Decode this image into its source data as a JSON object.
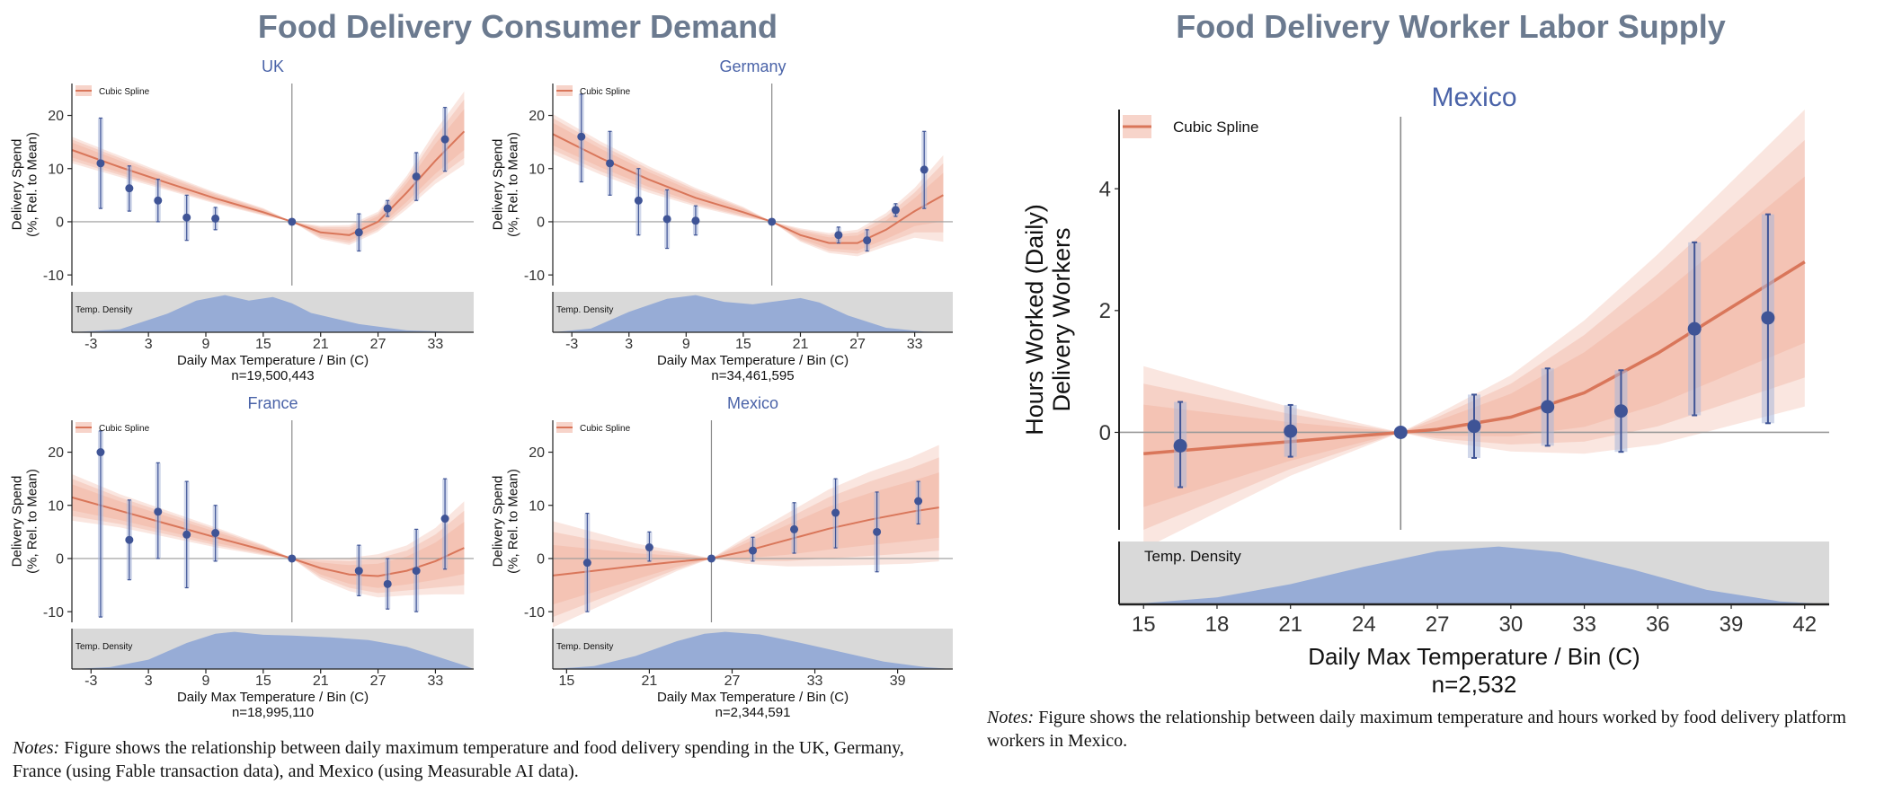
{
  "left_panel": {
    "title": "Food Delivery Consumer Demand",
    "notes_label": "Notes:",
    "notes_text": "Figure shows the relationship between daily maximum temperature and food delivery spending in the UK, Germany, France (using Fable transaction data), and Mexico (using Measurable AI data)."
  },
  "right_panel": {
    "title": "Food Delivery Worker Labor Supply",
    "notes_label": "Notes:",
    "notes_text": "Figure shows the relationship between daily maximum temperature and hours worked by food delivery platform workers in Mexico."
  },
  "colors": {
    "title": "#6b7a8f",
    "subtitle": "#4a63a8",
    "spline": "#d9765a",
    "band": "#f2b8a6",
    "point": "#3f5496",
    "point_band": "#a9b6d9",
    "density_fill": "#97acd6",
    "density_bg": "#d9d9d9"
  },
  "chart_data": [
    {
      "type": "line",
      "subtitle": "UK",
      "legend": "Cubic Spline",
      "density_label": "Temp. Density",
      "xlabel": "Daily Max Temperature / Bin (C)",
      "n_label": "n=19,500,443",
      "ylabel": [
        "Delivery Spend",
        "(%, Rel. to Mean)"
      ],
      "xlim": [
        -5,
        37
      ],
      "ylim": [
        -12,
        26
      ],
      "xticks": [
        -3,
        3,
        9,
        15,
        21,
        27,
        33
      ],
      "yticks": [
        -10,
        0,
        10,
        20
      ],
      "ref_x": 18,
      "spline": {
        "x": [
          -5,
          0,
          5,
          10,
          15,
          18,
          21,
          24,
          27,
          30,
          33,
          36
        ],
        "y": [
          13.5,
          10.3,
          7.3,
          4.4,
          1.8,
          0,
          -2,
          -2.5,
          0,
          5.5,
          11.5,
          17
        ]
      },
      "band": {
        "x": [
          -5,
          0,
          5,
          10,
          15,
          18,
          21,
          24,
          27,
          30,
          33,
          36
        ],
        "lo": [
          11.5,
          8.8,
          6.2,
          3.6,
          1.3,
          0,
          -3,
          -4,
          -1.5,
          3,
          8,
          12
        ],
        "hi": [
          15.5,
          12,
          8.6,
          5.3,
          2.4,
          0,
          -1,
          -1,
          1.5,
          8,
          16,
          23
        ]
      },
      "points": [
        {
          "x": -2,
          "y": 11,
          "lo": 2.5,
          "hi": 19.5
        },
        {
          "x": 1,
          "y": 6.3,
          "lo": 2,
          "hi": 10.5
        },
        {
          "x": 4,
          "y": 4,
          "lo": 0,
          "hi": 8
        },
        {
          "x": 7,
          "y": 0.8,
          "lo": -3.5,
          "hi": 5
        },
        {
          "x": 10,
          "y": 0.6,
          "lo": -1.5,
          "hi": 2.7
        },
        {
          "x": 18,
          "y": 0,
          "lo": 0,
          "hi": 0
        },
        {
          "x": 25,
          "y": -2,
          "lo": -5.5,
          "hi": 1.5
        },
        {
          "x": 28,
          "y": 2.5,
          "lo": 1,
          "hi": 4
        },
        {
          "x": 31,
          "y": 8.5,
          "lo": 4,
          "hi": 13
        },
        {
          "x": 34,
          "y": 15.5,
          "lo": 9.5,
          "hi": 21.5
        }
      ],
      "density": {
        "x": [
          -5,
          0,
          5,
          8,
          11,
          13.5,
          16,
          18,
          20,
          25,
          30,
          35,
          37
        ],
        "y": [
          0,
          0.08,
          0.5,
          0.85,
          1.0,
          0.85,
          0.95,
          0.78,
          0.52,
          0.22,
          0.05,
          0.01,
          0
        ]
      }
    },
    {
      "type": "line",
      "subtitle": "Germany",
      "legend": "Cubic Spline",
      "density_label": "Temp. Density",
      "xlabel": "Daily Max Temperature / Bin (C)",
      "n_label": "n=34,461,595",
      "ylabel": [
        "Delivery Spend",
        "(%, Rel. to Mean)"
      ],
      "xlim": [
        -5,
        37
      ],
      "ylim": [
        -12,
        26
      ],
      "xticks": [
        -3,
        3,
        9,
        15,
        21,
        27,
        33
      ],
      "yticks": [
        -10,
        0,
        10,
        20
      ],
      "ref_x": 18,
      "spline": {
        "x": [
          -5,
          0,
          5,
          10,
          15,
          18,
          21,
          24,
          27,
          30,
          33,
          36
        ],
        "y": [
          16.5,
          12,
          8,
          4.5,
          1.8,
          0,
          -2.5,
          -4,
          -4,
          -1.5,
          2,
          5
        ]
      },
      "band": {
        "x": [
          -5,
          0,
          5,
          10,
          15,
          18,
          21,
          24,
          27,
          30,
          33,
          36
        ],
        "lo": [
          13.5,
          9.5,
          6,
          3.2,
          1,
          0,
          -3.5,
          -5.5,
          -6,
          -4,
          -2,
          -2
        ]
      },
      "band_hi": [
        19.5,
        14.5,
        10,
        6,
        2.6,
        0,
        -1.5,
        -2.5,
        -2,
        1,
        5.5,
        11
      ],
      "points": [
        {
          "x": -2,
          "y": 16,
          "lo": 7.5,
          "hi": 24
        },
        {
          "x": 1,
          "y": 11,
          "lo": 5,
          "hi": 17
        },
        {
          "x": 4,
          "y": 4,
          "lo": -2.5,
          "hi": 10
        },
        {
          "x": 7,
          "y": 0.5,
          "lo": -5,
          "hi": 6
        },
        {
          "x": 10,
          "y": 0.2,
          "lo": -2.5,
          "hi": 3
        },
        {
          "x": 18,
          "y": 0,
          "lo": 0,
          "hi": 0
        },
        {
          "x": 25,
          "y": -2.5,
          "lo": -4,
          "hi": -1
        },
        {
          "x": 28,
          "y": -3.5,
          "lo": -5.5,
          "hi": -1.5
        },
        {
          "x": 31,
          "y": 2.2,
          "lo": 1,
          "hi": 3.4
        },
        {
          "x": 34,
          "y": 9.8,
          "lo": 2.5,
          "hi": 17
        }
      ],
      "density": {
        "x": [
          -5,
          -1,
          3,
          7,
          10,
          13,
          16,
          19,
          21,
          23,
          26,
          30,
          34,
          37
        ],
        "y": [
          0,
          0.1,
          0.55,
          0.9,
          1.0,
          0.82,
          0.75,
          0.85,
          0.92,
          0.8,
          0.45,
          0.12,
          0.02,
          0
        ]
      }
    },
    {
      "type": "line",
      "subtitle": "France",
      "legend": "Cubic Spline",
      "density_label": "Temp. Density",
      "xlabel": "Daily Max Temperature / Bin (C)",
      "n_label": "n=18,995,110",
      "ylabel": [
        "Delivery Spend",
        "(%, Rel. to Mean)"
      ],
      "xlim": [
        -5,
        37
      ],
      "ylim": [
        -12,
        26
      ],
      "xticks": [
        -3,
        3,
        9,
        15,
        21,
        27,
        33
      ],
      "yticks": [
        -10,
        0,
        10,
        20
      ],
      "ref_x": 18,
      "spline": {
        "x": [
          -5,
          0,
          5,
          10,
          15,
          18,
          21,
          24,
          27,
          30,
          33,
          36
        ],
        "y": [
          11.5,
          9,
          6.5,
          4,
          1.6,
          0,
          -1.8,
          -3,
          -3.3,
          -2.3,
          -0.5,
          2
        ]
      },
      "band": {
        "x": [
          -5,
          0,
          5,
          10,
          15,
          18,
          21,
          24,
          27,
          30,
          33,
          36
        ],
        "lo": [
          8,
          6.5,
          4.5,
          2.5,
          0.8,
          0,
          -3.5,
          -5.5,
          -6.5,
          -6,
          -5.5,
          -5
        ]
      },
      "band_hi": [
        15,
        11.5,
        8.5,
        5.5,
        2.4,
        0,
        -0.3,
        -0.5,
        0,
        1.5,
        4.5,
        9
      ],
      "points": [
        {
          "x": -2,
          "y": 20,
          "lo": -11,
          "hi": 24
        },
        {
          "x": 1,
          "y": 3.5,
          "lo": -4,
          "hi": 11
        },
        {
          "x": 4,
          "y": 8.8,
          "lo": 0,
          "hi": 18
        },
        {
          "x": 7,
          "y": 4.5,
          "lo": -5.5,
          "hi": 14.5
        },
        {
          "x": 10,
          "y": 4.8,
          "lo": -0.5,
          "hi": 10
        },
        {
          "x": 18,
          "y": 0,
          "lo": 0,
          "hi": 0
        },
        {
          "x": 25,
          "y": -2.3,
          "lo": -7,
          "hi": 2.5
        },
        {
          "x": 28,
          "y": -4.8,
          "lo": -9.5,
          "hi": 0
        },
        {
          "x": 31,
          "y": -2.3,
          "lo": -10,
          "hi": 5.5
        },
        {
          "x": 34,
          "y": 7.5,
          "lo": -2,
          "hi": 15
        }
      ],
      "density": {
        "x": [
          -5,
          -1,
          3,
          7,
          10,
          12,
          15,
          18,
          22,
          26,
          30,
          33,
          36,
          37
        ],
        "y": [
          0,
          0.05,
          0.25,
          0.7,
          0.95,
          1.0,
          0.92,
          0.9,
          0.85,
          0.78,
          0.6,
          0.35,
          0.1,
          0
        ]
      }
    },
    {
      "type": "line",
      "subtitle": "Mexico",
      "legend": "Cubic Spline",
      "density_label": "Temp. Density",
      "xlabel": "Daily Max Temperature / Bin (C)",
      "n_label": "n=2,344,591",
      "ylabel": [
        "Delivery Spend",
        "(%, Rel. to Mean)"
      ],
      "xlim": [
        14,
        43
      ],
      "ylim": [
        -12,
        26
      ],
      "xticks": [
        15,
        21,
        27,
        33,
        39
      ],
      "yticks": [
        -10,
        0,
        10,
        20
      ],
      "ref_x": 25.5,
      "spline": {
        "x": [
          14,
          17,
          20,
          23,
          25.5,
          28,
          31,
          34,
          37,
          40,
          42
        ],
        "y": [
          -3.2,
          -2.3,
          -1.4,
          -0.6,
          0,
          1.4,
          3.5,
          5.6,
          7.3,
          8.8,
          9.6
        ]
      },
      "band": {
        "x": [
          14,
          17,
          20,
          23,
          25.5,
          28,
          31,
          34,
          37,
          40,
          42
        ],
        "lo": [
          -11,
          -8,
          -5,
          -2,
          0,
          -0.5,
          -0.5,
          0,
          0.5,
          1,
          1.5
        ]
      },
      "band_hi": [
        5,
        3.5,
        2,
        1,
        0,
        3.5,
        7.5,
        11.5,
        14.5,
        17,
        19
      ],
      "points": [
        {
          "x": 16.5,
          "y": -0.8,
          "lo": -10,
          "hi": 8.5
        },
        {
          "x": 21,
          "y": 2.1,
          "lo": -0.5,
          "hi": 5
        },
        {
          "x": 25.5,
          "y": 0,
          "lo": 0,
          "hi": 0
        },
        {
          "x": 28.5,
          "y": 1.5,
          "lo": -0.5,
          "hi": 4
        },
        {
          "x": 31.5,
          "y": 5.5,
          "lo": 1,
          "hi": 10.5
        },
        {
          "x": 34.5,
          "y": 8.6,
          "lo": 2,
          "hi": 15
        },
        {
          "x": 37.5,
          "y": 5,
          "lo": -2.5,
          "hi": 12.5
        },
        {
          "x": 40.5,
          "y": 10.8,
          "lo": 6.5,
          "hi": 14.5
        }
      ],
      "density": {
        "x": [
          14,
          17,
          20,
          23,
          25,
          26.5,
          29,
          32,
          35,
          38,
          41,
          43
        ],
        "y": [
          0,
          0.08,
          0.35,
          0.75,
          0.95,
          1.0,
          0.93,
          0.7,
          0.45,
          0.2,
          0.05,
          0
        ]
      }
    },
    {
      "type": "line",
      "subtitle": "Mexico",
      "legend": "Cubic Spline",
      "density_label": "Temp. Density",
      "xlabel": "Daily Max Temperature / Bin (C)",
      "n_label": "n=2,532",
      "ylabel": [
        "Hours Worked (Daily)",
        "Delivery Workers"
      ],
      "xlim": [
        14,
        43
      ],
      "ylim": [
        -1.6,
        5.3
      ],
      "xticks": [
        15,
        18,
        21,
        24,
        27,
        30,
        33,
        36,
        39,
        42
      ],
      "yticks": [
        0,
        2,
        4
      ],
      "ref_x": 25.5,
      "spline": {
        "x": [
          15,
          18,
          21,
          24,
          25.5,
          27,
          30,
          33,
          36,
          39,
          42
        ],
        "y": [
          -0.35,
          -0.25,
          -0.15,
          -0.05,
          0,
          0.05,
          0.25,
          0.65,
          1.3,
          2.05,
          2.8
        ]
      },
      "band": {
        "x": [
          15,
          18,
          21,
          24,
          25.5,
          27,
          30,
          33,
          36,
          39,
          42
        ],
        "lo": [
          -1.6,
          -1.1,
          -0.6,
          -0.2,
          0,
          -0.1,
          -0.2,
          -0.15,
          0.1,
          0.5,
          0.9
        ]
      },
      "band_hi": [
        0.8,
        0.55,
        0.3,
        0.1,
        0,
        0.25,
        0.8,
        1.6,
        2.6,
        3.7,
        4.8
      ],
      "points": [
        {
          "x": 16.5,
          "y": -0.22,
          "lo": -0.9,
          "hi": 0.5
        },
        {
          "x": 21,
          "y": 0.02,
          "lo": -0.4,
          "hi": 0.45
        },
        {
          "x": 25.5,
          "y": 0,
          "lo": 0,
          "hi": 0
        },
        {
          "x": 28.5,
          "y": 0.1,
          "lo": -0.42,
          "hi": 0.62
        },
        {
          "x": 31.5,
          "y": 0.42,
          "lo": -0.22,
          "hi": 1.05
        },
        {
          "x": 34.5,
          "y": 0.35,
          "lo": -0.32,
          "hi": 1.02
        },
        {
          "x": 37.5,
          "y": 1.7,
          "lo": 0.28,
          "hi": 3.12
        },
        {
          "x": 40.5,
          "y": 1.88,
          "lo": 0.15,
          "hi": 3.58
        }
      ],
      "density": {
        "x": [
          14,
          15,
          18,
          21,
          24,
          27,
          29.5,
          32,
          35,
          38,
          41,
          43
        ],
        "y": [
          0,
          0.02,
          0.12,
          0.35,
          0.65,
          0.92,
          1.0,
          0.9,
          0.6,
          0.25,
          0.05,
          0
        ]
      }
    }
  ]
}
